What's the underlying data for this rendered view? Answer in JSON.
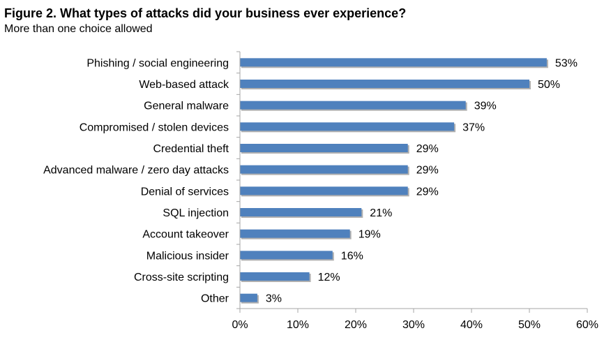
{
  "header": {
    "title": "Figure 2. What types of attacks did your business ever experience?",
    "subtitle": "More than one choice allowed"
  },
  "colors": {
    "bar": "#4F81BD",
    "bar_shadow": "#B0B0B0",
    "axis": "#A6A6A6"
  },
  "chart_data": {
    "type": "bar",
    "orientation": "horizontal",
    "title": "",
    "xlabel": "",
    "ylabel": "",
    "categories": [
      "Phishing / social engineering",
      "Web-based attack",
      "General malware",
      "Compromised / stolen devices",
      "Credential theft",
      "Advanced malware / zero day attacks",
      "Denial of services",
      "SQL injection",
      "Account takeover",
      "Malicious insider",
      "Cross-site scripting",
      "Other"
    ],
    "values": [
      53,
      50,
      39,
      37,
      29,
      29,
      29,
      21,
      19,
      16,
      12,
      3
    ],
    "value_labels": [
      "53%",
      "50%",
      "39%",
      "37%",
      "29%",
      "29%",
      "29%",
      "21%",
      "19%",
      "16%",
      "12%",
      "3%"
    ],
    "xlim": [
      0,
      60
    ],
    "xticks": [
      0,
      10,
      20,
      30,
      40,
      50,
      60
    ],
    "xtick_labels": [
      "0%",
      "10%",
      "20%",
      "30%",
      "40%",
      "50%",
      "60%"
    ],
    "grid": false,
    "legend": "none"
  }
}
